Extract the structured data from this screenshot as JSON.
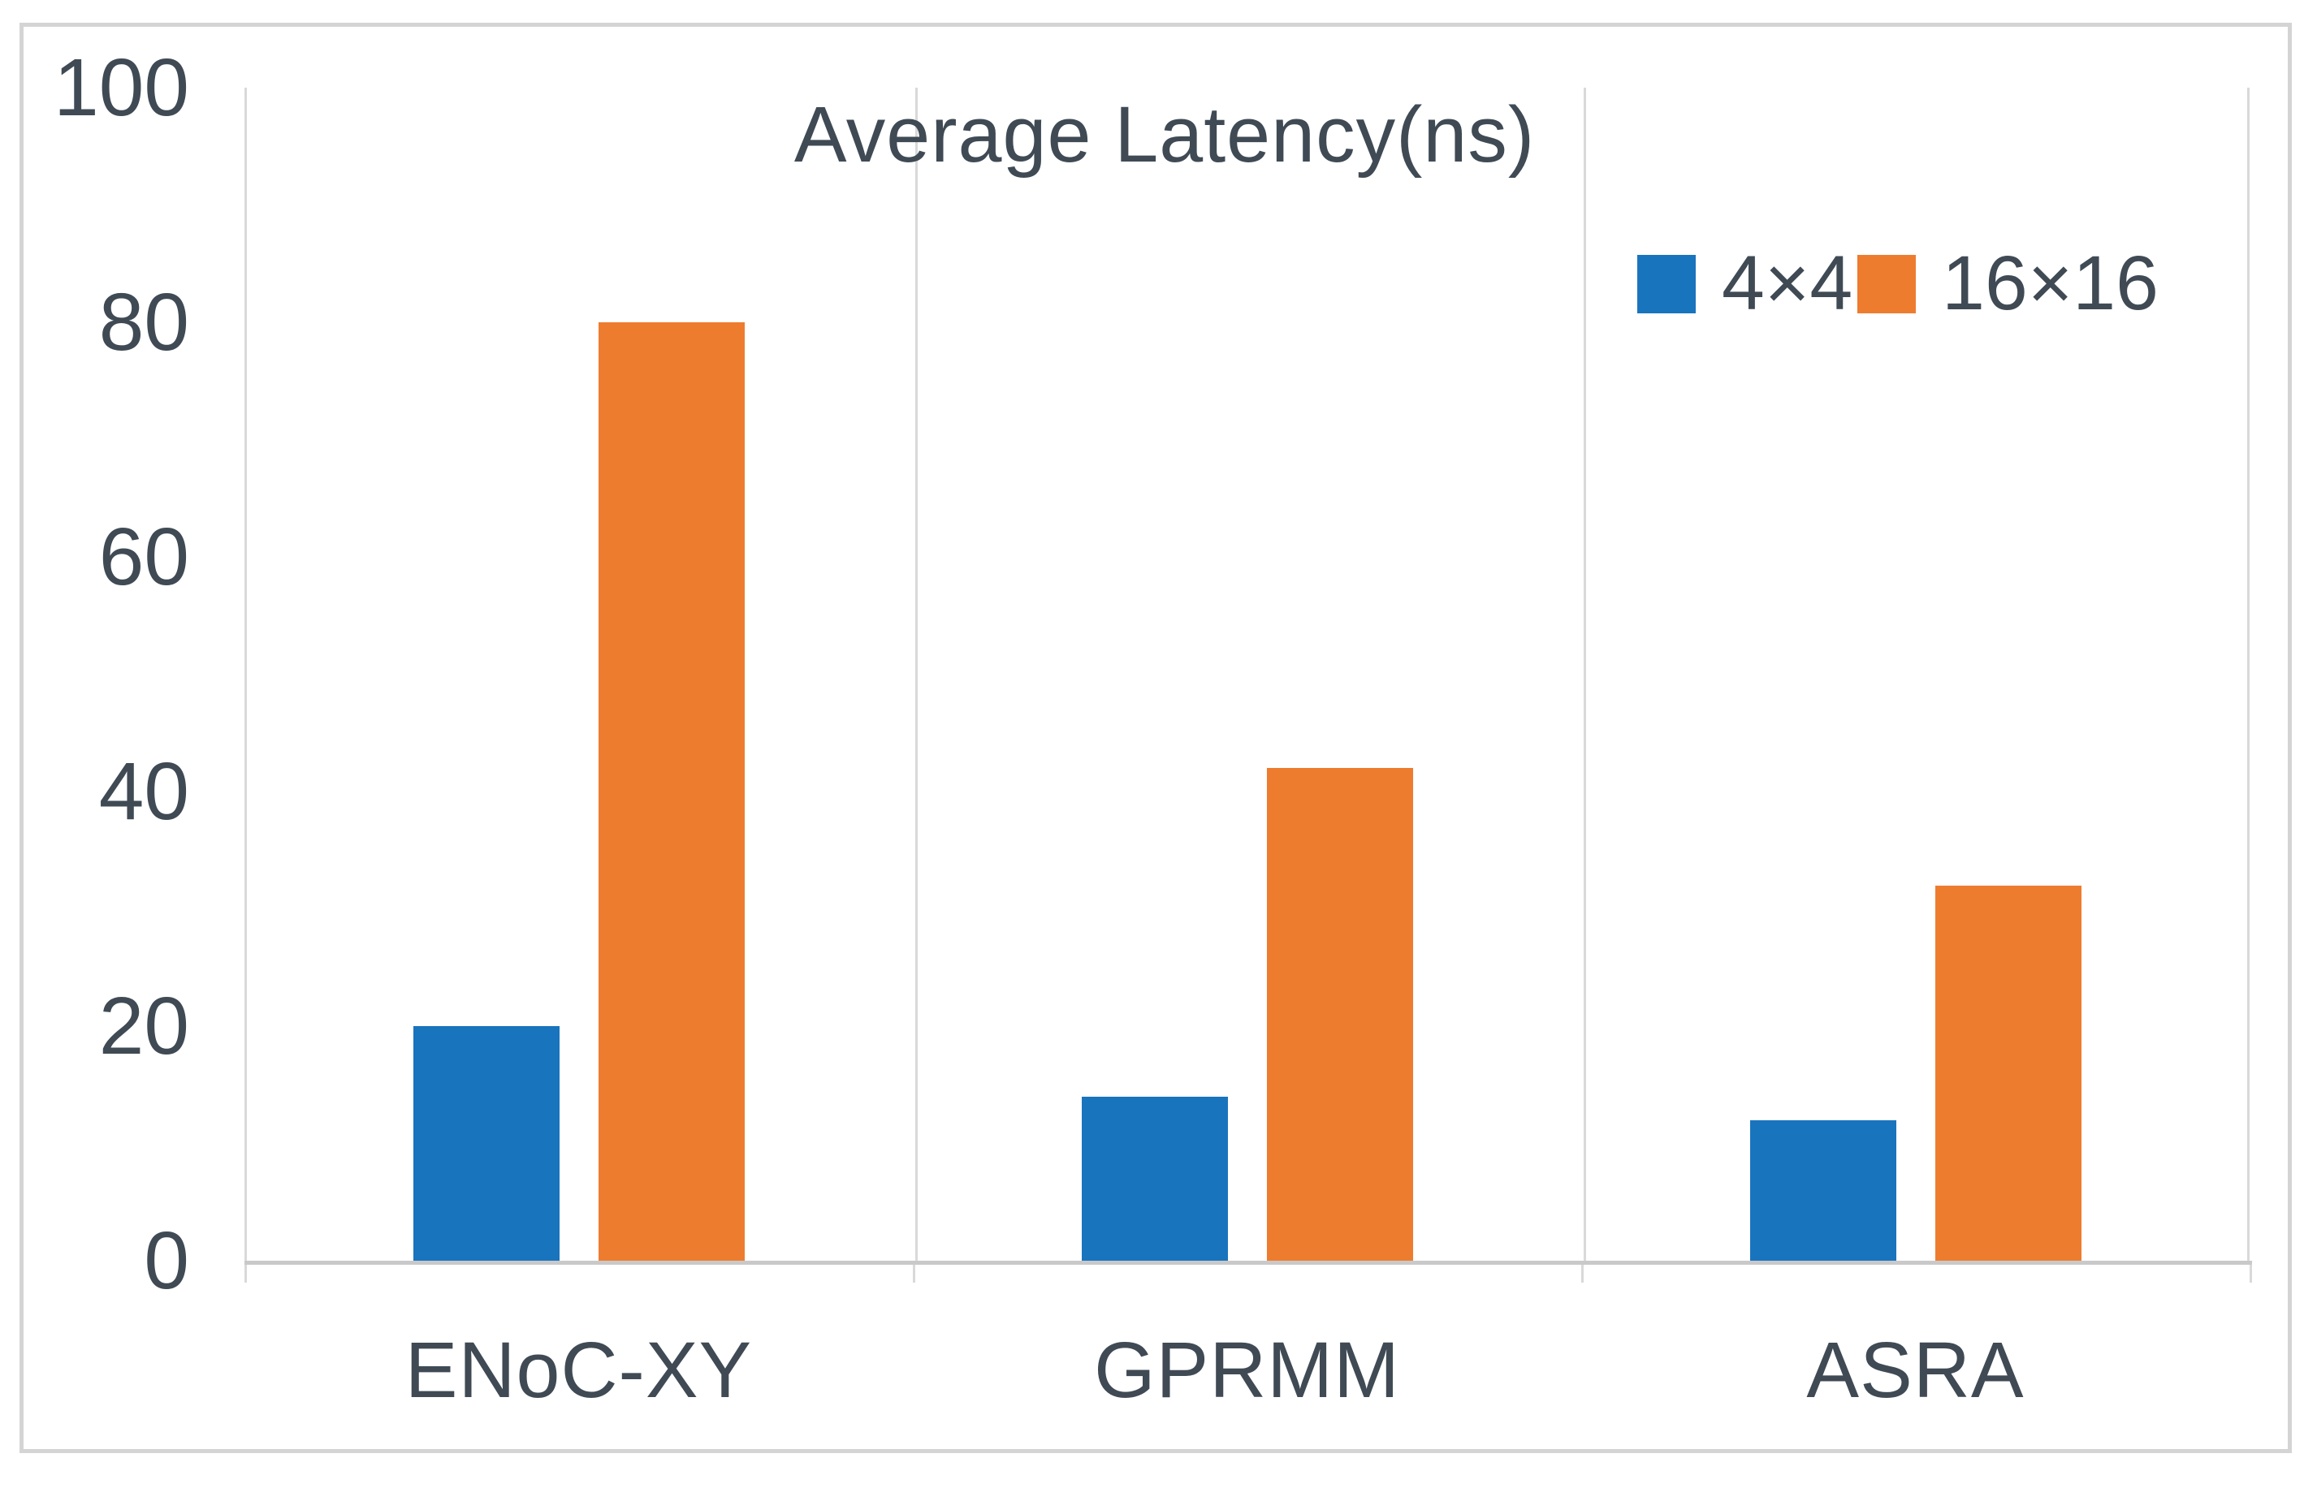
{
  "figure": {
    "title": "Average Latency(ns)"
  },
  "chart_data": {
    "type": "bar",
    "title": "Average Latency(ns)",
    "categories": [
      "ENoC-XY",
      "GPRMM",
      "ASRA"
    ],
    "series": [
      {
        "name": "4×4",
        "color": "#1974be",
        "values": [
          20,
          14,
          12
        ]
      },
      {
        "name": "16×16",
        "color": "#ee7c2f",
        "values": [
          80,
          42,
          32
        ]
      }
    ],
    "xlabel": "",
    "ylabel": "",
    "ylim": [
      0,
      100
    ],
    "yticks": [
      0,
      20,
      40,
      60,
      80,
      100
    ],
    "grid": "vertical category separators only",
    "legend_position": "top-right inside plot"
  },
  "colors": {
    "text": "#3f4a54",
    "gridline": "#d9d9d9",
    "axis_line": "#c9c9c9",
    "frame_border": "#d4d4d4",
    "background": "#ffffff"
  }
}
